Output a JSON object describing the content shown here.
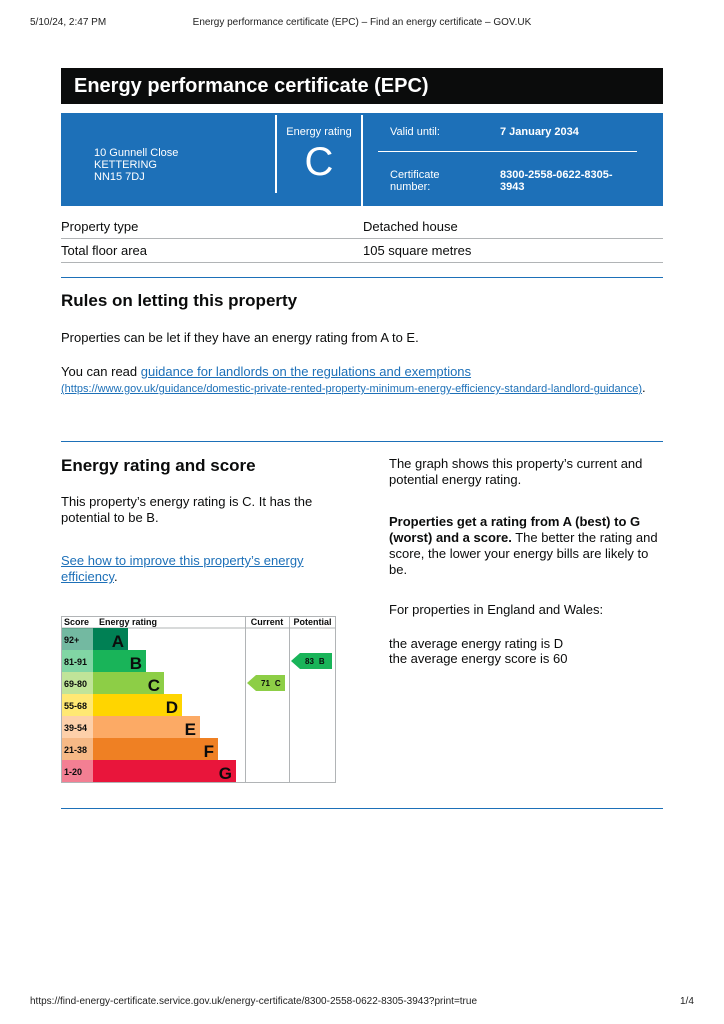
{
  "print_header": {
    "date": "5/10/24, 2:47 PM",
    "title": "Energy performance certificate (EPC) – Find an energy certificate – GOV.UK"
  },
  "header": {
    "title": "Energy performance certificate (EPC)"
  },
  "summary": {
    "address": [
      "10 Gunnell Close",
      "KETTERING",
      "NN15 7DJ"
    ],
    "rating_label": "Energy rating",
    "rating": "C",
    "valid_label": "Valid until:",
    "valid_date": "7 January 2034",
    "cert_label": "Certificate number:",
    "cert_number": "8300-2558-0622-8305-3943"
  },
  "property": {
    "rows": [
      [
        "Property type",
        "Detached house"
      ],
      [
        "Total floor area",
        "105 square metres"
      ]
    ]
  },
  "rules": {
    "heading": "Rules on letting this property",
    "paragraph": "Properties can be let if they have an energy rating from A to E.",
    "read_prefix": "You can read ",
    "link": "guidance for landlords on the regulations and exemptions",
    "url": "(https://www.gov.uk/guidance/domestic-private-rented-property-minimum-energy-efficiency-standard-landlord-guidance)",
    "read_suffix": "."
  },
  "rating_section": {
    "heading": "Energy rating and score",
    "paragraph": "This property’s energy rating is C. It has the potential to be B.",
    "link": "See how to improve this property’s energy efficiency",
    "link_suffix": ".",
    "graph_text": "The graph shows this property’s current and potential energy rating.",
    "bold_text": "Properties get a rating from A (best) to G (worst) and a score.",
    "rest_text": " The better the rating and score, the lower your energy bills are likely to be.",
    "region_text": "For properties in England and Wales:",
    "average_rating": "the average energy rating is D",
    "average_score": "the average energy score is 60"
  },
  "graph": {
    "headers": [
      "Score",
      "Energy rating",
      "Current",
      "Potential"
    ],
    "bands": [
      {
        "score": "92+",
        "letter": "A",
        "color": "#008054"
      },
      {
        "score": "81-91",
        "letter": "B",
        "color": "#19b459"
      },
      {
        "score": "69-80",
        "letter": "C",
        "color": "#8dce46"
      },
      {
        "score": "55-68",
        "letter": "D",
        "color": "#ffd500"
      },
      {
        "score": "39-54",
        "letter": "E",
        "color": "#fcaa65"
      },
      {
        "score": "21-38",
        "letter": "F",
        "color": "#ef8023"
      },
      {
        "score": "1-20",
        "letter": "G",
        "color": "#e9153b"
      }
    ],
    "current": {
      "score": 71,
      "letter": "C"
    },
    "potential": {
      "score": 83,
      "letter": "B"
    }
  },
  "footer": {
    "url": "https://find-energy-certificate.service.gov.uk/energy-certificate/8300-2558-0622-8305-3943?print=true",
    "page": "1/4"
  }
}
